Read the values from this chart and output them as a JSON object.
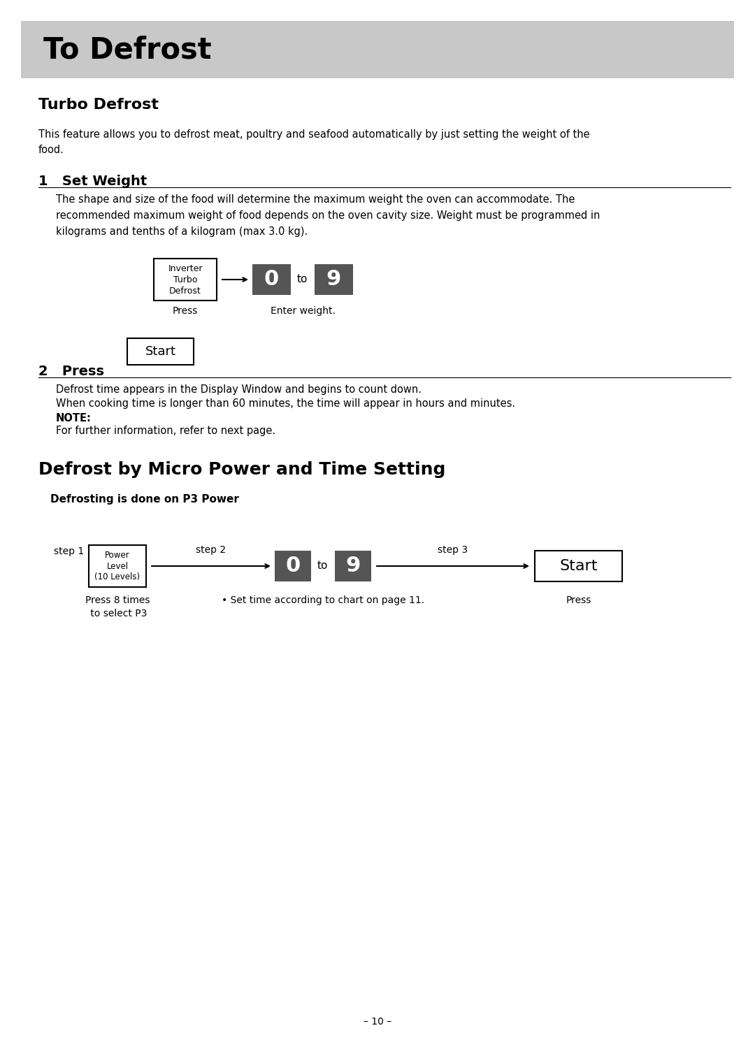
{
  "page_bg": "#ffffff",
  "header_bg": "#c8c8c8",
  "header_text": "To Defrost",
  "header_text_color": "#000000",
  "section1_title": "Turbo Defrost",
  "section1_body": "This feature allows you to defrost meat, poultry and seafood automatically by just setting the weight of the\nfood.",
  "step1_title": "1   Set Weight",
  "step1_body": "The shape and size of the food will determine the maximum weight the oven can accommodate. The\nrecommended maximum weight of food depends on the oven cavity size. Weight must be programmed in\nkilograms and tenths of a kilogram (max 3.0 kg).",
  "btn_color_dark": "#555555",
  "btn_color_white": "#ffffff",
  "btn_border": "#000000",
  "inverter_btn_label": "Inverter\nTurbo\nDefrost",
  "press_label1": "Press",
  "enter_weight_label": "Enter weight.",
  "step2_title": "2   Press",
  "start_btn_label": "Start",
  "step2_body1": "Defrost time appears in the Display Window and begins to count down.",
  "step2_body2": "When cooking time is longer than 60 minutes, the time will appear in hours and minutes.",
  "step2_note": "NOTE:",
  "step2_note_body": "For further information, refer to next page.",
  "section2_title": "Defrost by Micro Power and Time Setting",
  "defrost_note": "Defrosting is done on P3 Power",
  "step1_label": "step 1",
  "power_btn_label": "Power\nLevel\n(10 Levels)",
  "step2_label": "step 2",
  "step3_label": "step 3",
  "press_8_times": "Press 8 times\n to select P3",
  "chart_note": "• Set time according to chart on page 11.",
  "press_label2": "Press",
  "page_number": "– 10 –"
}
